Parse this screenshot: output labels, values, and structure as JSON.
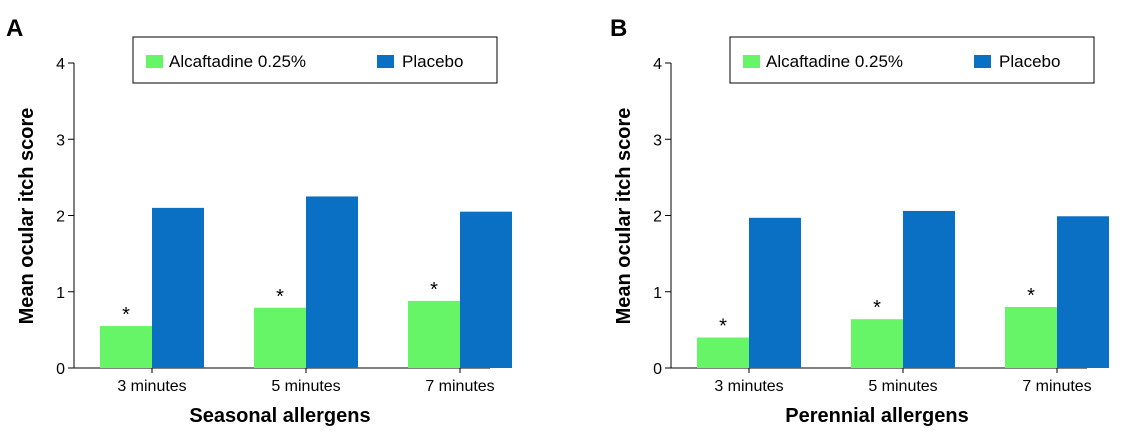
{
  "colors": {
    "series_a": "#66f566",
    "series_b": "#0a70c4",
    "axis": "#000000"
  },
  "chart_data": [
    {
      "panel": "A",
      "type": "bar",
      "categories": [
        "3 minutes",
        "5 minutes",
        "7 minutes"
      ],
      "series": [
        {
          "name": "Alcaftadine 0.25%",
          "values": [
            0.55,
            0.79,
            0.88
          ],
          "significance": [
            "*",
            "*",
            "*"
          ]
        },
        {
          "name": "Placebo",
          "values": [
            2.1,
            2.25,
            2.05
          ]
        }
      ],
      "ylabel": "Mean ocular itch score",
      "xlabel": "Seasonal allergens",
      "ylim": [
        0,
        4
      ],
      "yticks": [
        "0",
        "1",
        "2",
        "3",
        "4"
      ],
      "grid": false,
      "legend": "top-center"
    },
    {
      "panel": "B",
      "type": "bar",
      "categories": [
        "3 minutes",
        "5 minutes",
        "7 minutes"
      ],
      "series": [
        {
          "name": "Alcaftadine 0.25%",
          "values": [
            0.4,
            0.64,
            0.8
          ],
          "significance": [
            "*",
            "*",
            "*"
          ]
        },
        {
          "name": "Placebo",
          "values": [
            1.97,
            2.06,
            1.99
          ]
        }
      ],
      "ylabel": "Mean ocular itch score",
      "xlabel": "Perennial allergens",
      "ylim": [
        0,
        4
      ],
      "yticks": [
        "0",
        "1",
        "2",
        "3",
        "4"
      ],
      "grid": false,
      "legend": "top-center"
    }
  ]
}
